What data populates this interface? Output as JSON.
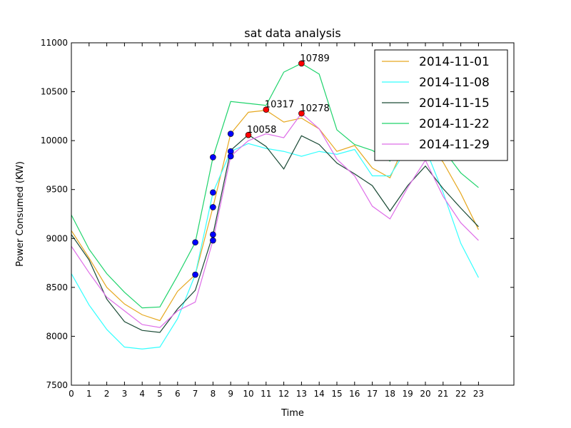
{
  "chart_data": {
    "type": "line",
    "title": "sat data analysis",
    "xlabel": "Time",
    "ylabel": "Power Consumed (KW)",
    "xlim": [
      0,
      25
    ],
    "ylim": [
      7500,
      11000
    ],
    "xticks": [
      0,
      1,
      2,
      3,
      4,
      5,
      6,
      7,
      8,
      9,
      10,
      11,
      12,
      13,
      14,
      15,
      16,
      17,
      18,
      19,
      20,
      21,
      22,
      23
    ],
    "yticks": [
      7500,
      8000,
      8500,
      9000,
      9500,
      10000,
      10500,
      11000
    ],
    "legend_position": "top-right",
    "x": [
      0,
      1,
      2,
      3,
      4,
      5,
      6,
      7,
      8,
      9,
      10,
      11,
      12,
      13,
      14,
      15,
      16,
      17,
      18,
      19,
      20,
      21,
      22,
      23
    ],
    "series": [
      {
        "name": "2014-11-01",
        "color": "#e6a820",
        "values": [
          9080,
          8800,
          8500,
          8330,
          8220,
          8160,
          8460,
          8630,
          9320,
          10070,
          10290,
          10310,
          10190,
          10230,
          10120,
          9890,
          9950,
          9720,
          9620,
          10030,
          10000,
          9780,
          9460,
          9090
        ]
      },
      {
        "name": "2014-11-08",
        "color": "#33ffff",
        "values": [
          8640,
          8320,
          8070,
          7890,
          7870,
          7890,
          8180,
          8630,
          9470,
          9890,
          9970,
          9920,
          9890,
          9840,
          9890,
          9860,
          9910,
          9640,
          9640,
          9930,
          9920,
          9470,
          8950,
          8600
        ]
      },
      {
        "name": "2014-11-15",
        "color": "#1a4a35",
        "values": [
          9040,
          8780,
          8380,
          8150,
          8060,
          8040,
          8280,
          8470,
          9040,
          9900,
          10060,
          9940,
          9710,
          10050,
          9960,
          9770,
          9660,
          9540,
          9280,
          9540,
          9740,
          9510,
          9310,
          9120
        ]
      },
      {
        "name": "2014-11-22",
        "color": "#1ed36b",
        "values": [
          9240,
          8890,
          8640,
          8450,
          8290,
          8300,
          8620,
          8960,
          9830,
          10400,
          10380,
          10360,
          10700,
          10790,
          10680,
          10110,
          9960,
          9900,
          9790,
          10170,
          10130,
          9910,
          9670,
          9520
        ]
      },
      {
        "name": "2014-11-29",
        "color": "#de6ee8",
        "values": [
          8920,
          8650,
          8400,
          8260,
          8120,
          8090,
          8260,
          8350,
          8980,
          9840,
          10000,
          10070,
          10030,
          10280,
          10120,
          9810,
          9640,
          9330,
          9200,
          9520,
          9800,
          9430,
          9160,
          8980
        ]
      }
    ],
    "blue_markers": [
      {
        "x": 7,
        "y": 8960
      },
      {
        "x": 7,
        "y": 8630
      },
      {
        "x": 8,
        "y": 9830
      },
      {
        "x": 8,
        "y": 9470
      },
      {
        "x": 8,
        "y": 9320
      },
      {
        "x": 8,
        "y": 9040
      },
      {
        "x": 8,
        "y": 8980
      },
      {
        "x": 9,
        "y": 10070
      },
      {
        "x": 9,
        "y": 9890
      },
      {
        "x": 9,
        "y": 9840
      }
    ],
    "peak_markers": [
      {
        "x": 10,
        "y": 10058,
        "label": "10058"
      },
      {
        "x": 11,
        "y": 10317,
        "label": "10317"
      },
      {
        "x": 13,
        "y": 10278,
        "label": "10278"
      },
      {
        "x": 13,
        "y": 10789,
        "label": "10789"
      }
    ],
    "marker_colors": {
      "blue": "#0000ff",
      "red": "#ff0000"
    }
  }
}
